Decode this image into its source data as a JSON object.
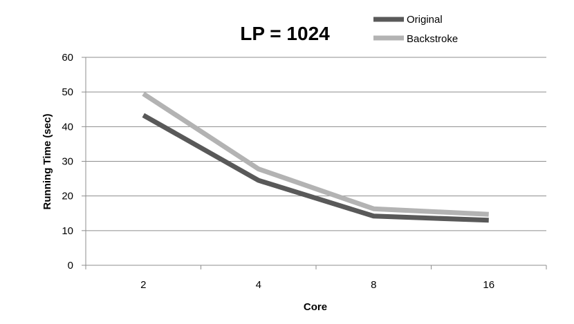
{
  "chart_data": {
    "type": "line",
    "title": "LP = 1024",
    "xlabel": "Core",
    "ylabel": "Running Time (sec)",
    "categories": [
      "2",
      "4",
      "8",
      "16"
    ],
    "ylim": [
      0,
      60
    ],
    "yticks": [
      0,
      10,
      20,
      30,
      40,
      50,
      60
    ],
    "grid": true,
    "legend_position": "top-right",
    "series": [
      {
        "name": "Original",
        "color": "#595959",
        "values": [
          43.3,
          24.5,
          14.2,
          13.0
        ]
      },
      {
        "name": "Backstroke",
        "color": "#b3b3b3",
        "values": [
          49.5,
          27.8,
          16.3,
          14.7
        ]
      }
    ]
  }
}
